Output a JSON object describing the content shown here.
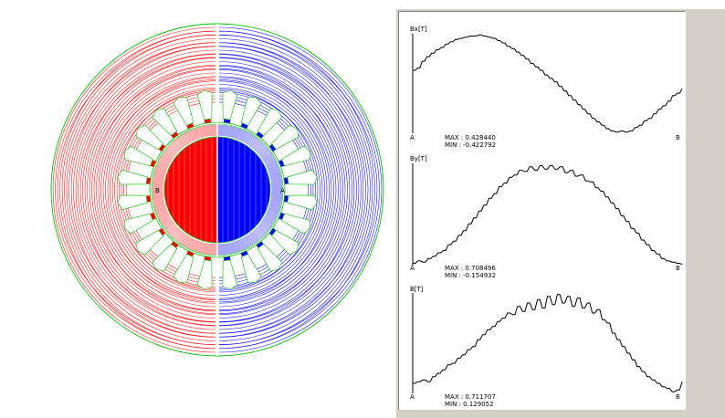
{
  "labels": {
    "rotor_left": "B",
    "rotor_right": "A"
  },
  "colors": {
    "left_flux": "#ff0000",
    "right_flux": "#0000ff",
    "outline": "#00c000",
    "curve": "#000000"
  },
  "plots": [
    {
      "ylabel": "Bx[T]",
      "start_label": "A",
      "end_label": "B",
      "max_text": "MAX : 0.428440",
      "min_text": "MIN : -0.422792",
      "ylim": [
        -0.43,
        0.44
      ],
      "values": [
        0.12,
        0.14,
        0.2,
        0.24,
        0.27,
        0.3,
        0.32,
        0.35,
        0.37,
        0.39,
        0.4,
        0.41,
        0.42,
        0.42,
        0.43,
        0.42,
        0.41,
        0.4,
        0.38,
        0.36,
        0.33,
        0.31,
        0.28,
        0.25,
        0.22,
        0.18,
        0.15,
        0.12,
        0.08,
        0.05,
        0.02,
        -0.02,
        -0.06,
        -0.1,
        -0.14,
        -0.18,
        -0.22,
        -0.26,
        -0.3,
        -0.33,
        -0.36,
        -0.39,
        -0.41,
        -0.42,
        -0.41,
        -0.42,
        -0.41,
        -0.38,
        -0.36,
        -0.32,
        -0.3,
        -0.26,
        -0.22,
        -0.19,
        -0.15,
        -0.1,
        -0.08,
        -0.04
      ]
    },
    {
      "ylabel": "By[T]",
      "start_label": "A",
      "end_label": "B",
      "max_text": "MAX : 0.708496",
      "min_text": "MIN : -0.154932",
      "ylim": [
        -0.16,
        0.72
      ],
      "values": [
        -0.14,
        -0.12,
        -0.13,
        -0.1,
        -0.08,
        -0.05,
        -0.03,
        0.02,
        0.05,
        0.1,
        0.14,
        0.2,
        0.25,
        0.31,
        0.36,
        0.42,
        0.46,
        0.52,
        0.55,
        0.6,
        0.62,
        0.66,
        0.65,
        0.69,
        0.66,
        0.7,
        0.67,
        0.7,
        0.67,
        0.69,
        0.64,
        0.66,
        0.61,
        0.62,
        0.57,
        0.56,
        0.51,
        0.48,
        0.43,
        0.38,
        0.33,
        0.27,
        0.22,
        0.16,
        0.12,
        0.06,
        0.02,
        -0.03,
        -0.06,
        -0.1,
        -0.12,
        -0.13,
        -0.14,
        -0.15
      ]
    },
    {
      "ylabel": "B[T]",
      "start_label": "A",
      "end_label": "B",
      "max_text": "MAX : 0.711707",
      "min_text": "MIN : 0.129052",
      "ylim": [
        0.12,
        0.72
      ],
      "values": [
        0.18,
        0.19,
        0.2,
        0.19,
        0.22,
        0.24,
        0.26,
        0.29,
        0.3,
        0.33,
        0.35,
        0.38,
        0.4,
        0.44,
        0.47,
        0.5,
        0.52,
        0.55,
        0.57,
        0.6,
        0.59,
        0.64,
        0.61,
        0.66,
        0.62,
        0.68,
        0.63,
        0.7,
        0.65,
        0.71,
        0.66,
        0.7,
        0.64,
        0.69,
        0.63,
        0.66,
        0.6,
        0.62,
        0.56,
        0.54,
        0.48,
        0.44,
        0.4,
        0.36,
        0.32,
        0.28,
        0.25,
        0.22,
        0.2,
        0.18,
        0.16,
        0.15,
        0.13,
        0.14,
        0.19
      ]
    }
  ]
}
